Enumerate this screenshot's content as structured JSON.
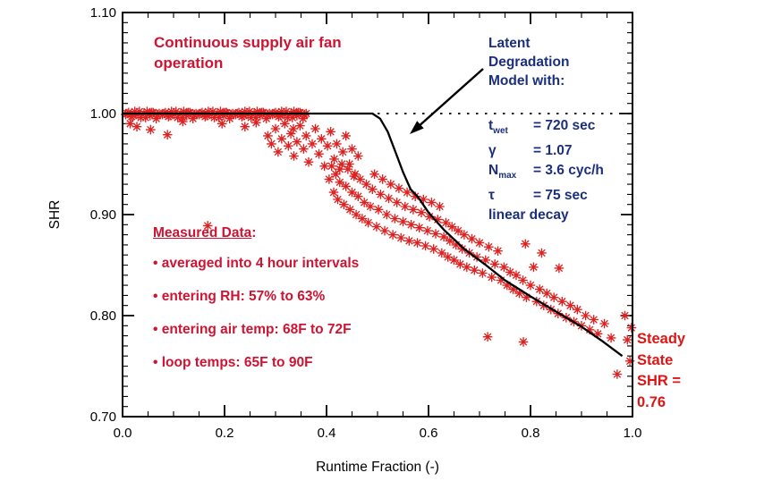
{
  "chart_data": {
    "type": "scatter",
    "xlabel": "Runtime Fraction (-)",
    "ylabel": "SHR",
    "xlim": [
      0.0,
      1.0
    ],
    "ylim": [
      0.7,
      1.1
    ],
    "x_ticks": {
      "major": [
        0.0,
        0.2,
        0.4,
        0.6,
        0.8,
        1.0
      ],
      "labels": [
        "0.0",
        "0.2",
        "0.4",
        "0.6",
        "0.8",
        "1.0"
      ],
      "minor_step": 0.05
    },
    "y_ticks": {
      "major": [
        0.7,
        0.8,
        0.9,
        1.0,
        1.1
      ],
      "labels": [
        "0.70",
        "0.80",
        "0.90",
        "1.00",
        "1.10"
      ],
      "minor_step": 0.01
    },
    "grid": false,
    "reference_line": {
      "y": 1.0,
      "style": "dotted",
      "x_start": 0.5,
      "x_end": 1.0
    },
    "model_curve": {
      "color": "#000000",
      "points": [
        [
          0.0,
          1.0
        ],
        [
          0.49,
          1.0
        ],
        [
          0.505,
          0.995
        ],
        [
          0.52,
          0.982
        ],
        [
          0.535,
          0.962
        ],
        [
          0.55,
          0.942
        ],
        [
          0.565,
          0.925
        ],
        [
          0.58,
          0.917
        ],
        [
          0.6,
          0.902
        ],
        [
          0.63,
          0.885
        ],
        [
          0.67,
          0.866
        ],
        [
          0.71,
          0.851
        ],
        [
          0.75,
          0.835
        ],
        [
          0.8,
          0.819
        ],
        [
          0.85,
          0.804
        ],
        [
          0.9,
          0.789
        ],
        [
          0.94,
          0.775
        ],
        [
          0.98,
          0.76
        ]
      ]
    },
    "scatter": {
      "color": "#dd2222",
      "marker": "asterisk",
      "points": [
        [
          0.006,
          0.999
        ],
        [
          0.012,
          1.001
        ],
        [
          0.018,
          0.997
        ],
        [
          0.024,
          1.002
        ],
        [
          0.03,
          0.999
        ],
        [
          0.036,
          0.996
        ],
        [
          0.042,
          1.0
        ],
        [
          0.048,
          1.002
        ],
        [
          0.054,
          0.998
        ],
        [
          0.06,
          1.001
        ],
        [
          0.066,
          0.995
        ],
        [
          0.072,
          1.0
        ],
        [
          0.078,
          0.999
        ],
        [
          0.084,
          1.001
        ],
        [
          0.09,
          0.997
        ],
        [
          0.096,
          1.002
        ],
        [
          0.102,
          0.999
        ],
        [
          0.108,
          0.996
        ],
        [
          0.114,
          1.0
        ],
        [
          0.12,
          1.002
        ],
        [
          0.126,
          0.998
        ],
        [
          0.132,
          1.001
        ],
        [
          0.138,
          0.995
        ],
        [
          0.144,
          1.0
        ],
        [
          0.15,
          0.999
        ],
        [
          0.156,
          1.001
        ],
        [
          0.162,
          0.997
        ],
        [
          0.168,
          1.002
        ],
        [
          0.174,
          0.999
        ],
        [
          0.18,
          0.996
        ],
        [
          0.186,
          1.0
        ],
        [
          0.192,
          1.002
        ],
        [
          0.198,
          0.998
        ],
        [
          0.204,
          1.001
        ],
        [
          0.21,
          0.995
        ],
        [
          0.216,
          1.0
        ],
        [
          0.222,
          0.999
        ],
        [
          0.228,
          1.001
        ],
        [
          0.234,
          0.997
        ],
        [
          0.24,
          1.002
        ],
        [
          0.246,
          0.999
        ],
        [
          0.252,
          0.996
        ],
        [
          0.258,
          1.0
        ],
        [
          0.264,
          1.002
        ],
        [
          0.27,
          0.998
        ],
        [
          0.276,
          1.001
        ],
        [
          0.282,
          0.995
        ],
        [
          0.288,
          1.0
        ],
        [
          0.294,
          0.999
        ],
        [
          0.3,
          1.001
        ],
        [
          0.306,
          0.997
        ],
        [
          0.312,
          1.002
        ],
        [
          0.318,
          0.999
        ],
        [
          0.324,
          0.996
        ],
        [
          0.33,
          1.0
        ],
        [
          0.336,
          1.002
        ],
        [
          0.342,
          0.998
        ],
        [
          0.348,
          1.001
        ],
        [
          0.354,
          0.995
        ],
        [
          0.36,
          1.0
        ],
        [
          0.009,
          1.0
        ],
        [
          0.021,
          0.998
        ],
        [
          0.033,
          1.002
        ],
        [
          0.045,
          0.996
        ],
        [
          0.057,
          1.001
        ],
        [
          0.069,
          0.999
        ],
        [
          0.081,
          1.0
        ],
        [
          0.093,
          0.998
        ],
        [
          0.105,
          1.002
        ],
        [
          0.117,
          0.996
        ],
        [
          0.129,
          1.001
        ],
        [
          0.141,
          0.999
        ],
        [
          0.153,
          1.0
        ],
        [
          0.165,
          0.998
        ],
        [
          0.177,
          1.002
        ],
        [
          0.189,
          0.996
        ],
        [
          0.201,
          1.001
        ],
        [
          0.213,
          0.999
        ],
        [
          0.225,
          1.0
        ],
        [
          0.237,
          0.998
        ],
        [
          0.249,
          1.002
        ],
        [
          0.261,
          0.996
        ],
        [
          0.273,
          1.001
        ],
        [
          0.285,
          0.999
        ],
        [
          0.297,
          1.0
        ],
        [
          0.309,
          0.998
        ],
        [
          0.321,
          1.002
        ],
        [
          0.333,
          0.996
        ],
        [
          0.345,
          1.001
        ],
        [
          0.357,
          0.999
        ],
        [
          0.015,
          0.99
        ],
        [
          0.028,
          0.987
        ],
        [
          0.055,
          0.984
        ],
        [
          0.088,
          0.979
        ],
        [
          0.118,
          0.992
        ],
        [
          0.167,
          0.889
        ],
        [
          0.195,
          0.99
        ],
        [
          0.24,
          0.987
        ],
        [
          0.262,
          0.991
        ],
        [
          0.335,
          0.985
        ],
        [
          0.285,
          0.978
        ],
        [
          0.292,
          0.97
        ],
        [
          0.3,
          0.985
        ],
        [
          0.305,
          0.962
        ],
        [
          0.312,
          0.975
        ],
        [
          0.318,
          0.99
        ],
        [
          0.325,
          0.968
        ],
        [
          0.33,
          0.98
        ],
        [
          0.336,
          0.958
        ],
        [
          0.342,
          0.972
        ],
        [
          0.348,
          0.988
        ],
        [
          0.355,
          0.965
        ],
        [
          0.36,
          0.978
        ],
        [
          0.365,
          0.952
        ],
        [
          0.372,
          0.97
        ],
        [
          0.378,
          0.985
        ],
        [
          0.385,
          0.96
        ],
        [
          0.39,
          0.975
        ],
        [
          0.396,
          0.948
        ],
        [
          0.402,
          0.968
        ],
        [
          0.408,
          0.982
        ],
        [
          0.415,
          0.955
        ],
        [
          0.42,
          0.97
        ],
        [
          0.426,
          0.945
        ],
        [
          0.432,
          0.962
        ],
        [
          0.438,
          0.978
        ],
        [
          0.445,
          0.95
        ],
        [
          0.45,
          0.965
        ],
        [
          0.456,
          0.94
        ],
        [
          0.462,
          0.958
        ],
        [
          0.405,
          0.935
        ],
        [
          0.41,
          0.948
        ],
        [
          0.414,
          0.922
        ],
        [
          0.418,
          0.94
        ],
        [
          0.422,
          0.915
        ],
        [
          0.426,
          0.932
        ],
        [
          0.43,
          0.95
        ],
        [
          0.434,
          0.91
        ],
        [
          0.438,
          0.928
        ],
        [
          0.442,
          0.945
        ],
        [
          0.446,
          0.905
        ],
        [
          0.45,
          0.922
        ],
        [
          0.454,
          0.938
        ],
        [
          0.458,
          0.9
        ],
        [
          0.462,
          0.918
        ],
        [
          0.466,
          0.935
        ],
        [
          0.47,
          0.896
        ],
        [
          0.474,
          0.912
        ],
        [
          0.478,
          0.93
        ],
        [
          0.482,
          0.892
        ],
        [
          0.486,
          0.908
        ],
        [
          0.49,
          0.925
        ],
        [
          0.494,
          0.94
        ],
        [
          0.498,
          0.888
        ],
        [
          0.502,
          0.905
        ],
        [
          0.506,
          0.92
        ],
        [
          0.51,
          0.935
        ],
        [
          0.514,
          0.884
        ],
        [
          0.518,
          0.9
        ],
        [
          0.522,
          0.916
        ],
        [
          0.526,
          0.93
        ],
        [
          0.53,
          0.88
        ],
        [
          0.534,
          0.896
        ],
        [
          0.538,
          0.912
        ],
        [
          0.542,
          0.926
        ],
        [
          0.546,
          0.877
        ],
        [
          0.55,
          0.893
        ],
        [
          0.554,
          0.908
        ],
        [
          0.558,
          0.922
        ],
        [
          0.562,
          0.874
        ],
        [
          0.566,
          0.89
        ],
        [
          0.57,
          0.905
        ],
        [
          0.574,
          0.918
        ],
        [
          0.578,
          0.872
        ],
        [
          0.582,
          0.887
        ],
        [
          0.586,
          0.902
        ],
        [
          0.59,
          0.915
        ],
        [
          0.594,
          0.869
        ],
        [
          0.598,
          0.884
        ],
        [
          0.602,
          0.898
        ],
        [
          0.606,
          0.912
        ],
        [
          0.61,
          0.866
        ],
        [
          0.614,
          0.881
        ],
        [
          0.618,
          0.895
        ],
        [
          0.622,
          0.908
        ],
        [
          0.626,
          0.862
        ],
        [
          0.63,
          0.878
        ],
        [
          0.634,
          0.892
        ],
        [
          0.638,
          0.858
        ],
        [
          0.642,
          0.874
        ],
        [
          0.646,
          0.888
        ],
        [
          0.65,
          0.855
        ],
        [
          0.654,
          0.87
        ],
        [
          0.658,
          0.884
        ],
        [
          0.662,
          0.851
        ],
        [
          0.666,
          0.866
        ],
        [
          0.67,
          0.88
        ],
        [
          0.675,
          0.848
        ],
        [
          0.68,
          0.862
        ],
        [
          0.685,
          0.876
        ],
        [
          0.69,
          0.845
        ],
        [
          0.695,
          0.858
        ],
        [
          0.7,
          0.872
        ],
        [
          0.706,
          0.842
        ],
        [
          0.712,
          0.855
        ],
        [
          0.718,
          0.868
        ],
        [
          0.724,
          0.838
        ],
        [
          0.73,
          0.851
        ],
        [
          0.736,
          0.864
        ],
        [
          0.742,
          0.835
        ],
        [
          0.748,
          0.848
        ],
        [
          0.754,
          0.83
        ],
        [
          0.76,
          0.843
        ],
        [
          0.766,
          0.826
        ],
        [
          0.772,
          0.84
        ],
        [
          0.778,
          0.822
        ],
        [
          0.785,
          0.835
        ],
        [
          0.79,
          0.871
        ],
        [
          0.792,
          0.818
        ],
        [
          0.8,
          0.83
        ],
        [
          0.806,
          0.848
        ],
        [
          0.812,
          0.814
        ],
        [
          0.818,
          0.826
        ],
        [
          0.822,
          0.862
        ],
        [
          0.826,
          0.81
        ],
        [
          0.832,
          0.822
        ],
        [
          0.84,
          0.806
        ],
        [
          0.846,
          0.818
        ],
        [
          0.854,
          0.802
        ],
        [
          0.856,
          0.847
        ],
        [
          0.862,
          0.814
        ],
        [
          0.87,
          0.798
        ],
        [
          0.878,
          0.81
        ],
        [
          0.885,
          0.794
        ],
        [
          0.892,
          0.806
        ],
        [
          0.9,
          0.79
        ],
        [
          0.908,
          0.8
        ],
        [
          0.916,
          0.786
        ],
        [
          0.924,
          0.796
        ],
        [
          0.932,
          0.782
        ],
        [
          0.945,
          0.792
        ],
        [
          0.958,
          0.778
        ],
        [
          0.97,
          0.742
        ],
        [
          0.985,
          0.8
        ],
        [
          0.99,
          0.776
        ],
        [
          0.995,
          0.755
        ],
        [
          0.998,
          0.788
        ],
        [
          0.716,
          0.779
        ],
        [
          0.786,
          0.774
        ]
      ]
    },
    "annotations": {
      "supply_note": {
        "lines": [
          "Continuous supply air fan",
          "operation"
        ],
        "color": "#cf1332"
      },
      "model_note": {
        "lines": [
          "Latent",
          "Degradation",
          "Model with:"
        ],
        "color": "#1b2f7d"
      },
      "params": {
        "color": "#1b2f7d",
        "rows": [
          {
            "symbol": "t",
            "subscript": "wet",
            "value": "= 720 sec"
          },
          {
            "symbol": "γ",
            "subscript": "",
            "value": "= 1.07"
          },
          {
            "symbol": "N",
            "subscript": "max",
            "value": "= 3.6 cyc/h"
          },
          {
            "symbol": "τ",
            "subscript": "",
            "value": "= 75 sec"
          }
        ],
        "footer": "linear decay"
      },
      "measured": {
        "heading": "Measured Data",
        "heading_suffix": ":",
        "bullets": [
          "averaged into 4 hour intervals",
          "entering RH: 57% to 63%",
          "entering air temp: 68F to 72F",
          "loop temps: 65F to 90F"
        ]
      },
      "steady_state": {
        "lines": [
          "Steady",
          "State",
          "SHR =",
          "0.76"
        ],
        "color": "#dd1515"
      }
    }
  }
}
